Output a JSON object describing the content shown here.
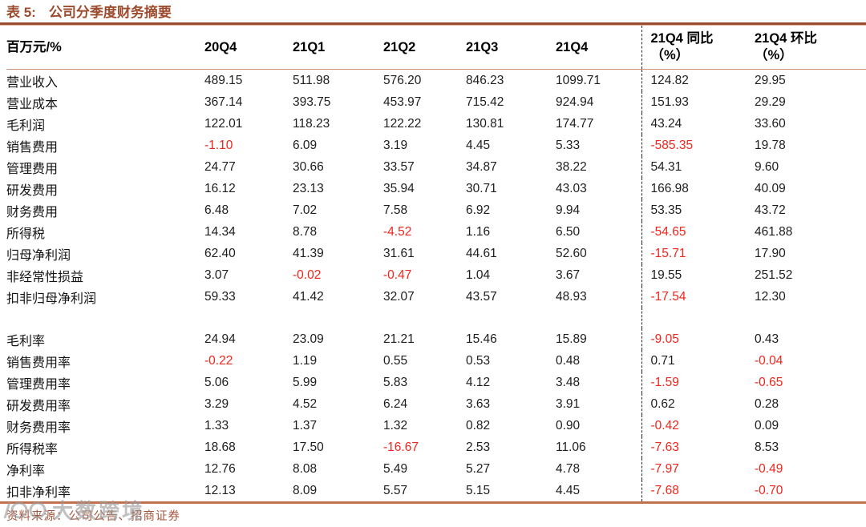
{
  "title": {
    "prefix": "表 5:",
    "text": "公司分季度财务摘要"
  },
  "table": {
    "unit_header": "百万元/%",
    "columns": [
      "20Q4",
      "21Q1",
      "21Q2",
      "21Q3",
      "21Q4"
    ],
    "compare_columns": [
      {
        "line1": "21Q4 同比",
        "line2": "（%）"
      },
      {
        "line1": "21Q4 环比",
        "line2": "（%）"
      }
    ],
    "rows_profit": [
      {
        "label": "营业收入",
        "values": [
          "489.15",
          "511.98",
          "576.20",
          "846.23",
          "1099.71",
          "124.82",
          "29.95"
        ]
      },
      {
        "label": "营业成本",
        "values": [
          "367.14",
          "393.75",
          "453.97",
          "715.42",
          "924.94",
          "151.93",
          "29.29"
        ]
      },
      {
        "label": "毛利润",
        "values": [
          "122.01",
          "118.23",
          "122.22",
          "130.81",
          "174.77",
          "43.24",
          "33.60"
        ]
      },
      {
        "label": "销售费用",
        "values": [
          "-1.10",
          "6.09",
          "3.19",
          "4.45",
          "5.33",
          "-585.35",
          "19.78"
        ]
      },
      {
        "label": "管理费用",
        "values": [
          "24.77",
          "30.66",
          "33.57",
          "34.87",
          "38.22",
          "54.31",
          "9.60"
        ]
      },
      {
        "label": "研发费用",
        "values": [
          "16.12",
          "23.13",
          "35.94",
          "30.71",
          "43.03",
          "166.98",
          "40.09"
        ]
      },
      {
        "label": "财务费用",
        "values": [
          "6.48",
          "7.02",
          "7.58",
          "6.92",
          "9.94",
          "53.35",
          "43.72"
        ]
      },
      {
        "label": "所得税",
        "values": [
          "14.34",
          "8.78",
          "-4.52",
          "1.16",
          "6.50",
          "-54.65",
          "461.88"
        ]
      },
      {
        "label": "归母净利润",
        "values": [
          "62.40",
          "41.39",
          "31.61",
          "44.61",
          "52.60",
          "-15.71",
          "17.90"
        ]
      },
      {
        "label": "非经常性损益",
        "values": [
          "3.07",
          "-0.02",
          "-0.47",
          "1.04",
          "3.67",
          "19.55",
          "251.52"
        ]
      },
      {
        "label": "扣非归母净利润",
        "values": [
          "59.33",
          "41.42",
          "32.07",
          "43.57",
          "48.93",
          "-17.54",
          "12.30"
        ]
      }
    ],
    "rows_ratio": [
      {
        "label": "毛利率",
        "values": [
          "24.94",
          "23.09",
          "21.21",
          "15.46",
          "15.89",
          "-9.05",
          "0.43"
        ]
      },
      {
        "label": "销售费用率",
        "values": [
          "-0.22",
          "1.19",
          "0.55",
          "0.53",
          "0.48",
          "0.71",
          "-0.04"
        ]
      },
      {
        "label": "管理费用率",
        "values": [
          "5.06",
          "5.99",
          "5.83",
          "4.12",
          "3.48",
          "-1.59",
          "-0.65"
        ]
      },
      {
        "label": "研发费用率",
        "values": [
          "3.29",
          "4.52",
          "6.24",
          "3.63",
          "3.91",
          "0.62",
          "0.28"
        ]
      },
      {
        "label": "财务费用率",
        "values": [
          "1.33",
          "1.37",
          "1.32",
          "0.82",
          "0.90",
          "-0.42",
          "0.09"
        ]
      },
      {
        "label": "所得税率",
        "values": [
          "18.68",
          "17.50",
          "-16.67",
          "2.53",
          "11.06",
          "-7.63",
          "8.53"
        ]
      },
      {
        "label": "净利率",
        "values": [
          "12.76",
          "8.08",
          "5.49",
          "5.27",
          "4.78",
          "-7.97",
          "-0.49"
        ]
      },
      {
        "label": "扣非净利率",
        "values": [
          "12.13",
          "8.09",
          "5.57",
          "5.15",
          "4.45",
          "-7.68",
          "-0.70"
        ]
      }
    ]
  },
  "footer": {
    "source": "资料来源：公司公告、招商证券"
  },
  "watermark": {
    "text": "大数跨境"
  },
  "colors": {
    "accent_brown": "#9d4b2d",
    "rule_light": "#d1927a",
    "rule_bottom": "#bf7150",
    "negative_red": "#f0251b",
    "text_dark": "#1d1d1f",
    "watermark_gray": "#9b9b9b"
  }
}
